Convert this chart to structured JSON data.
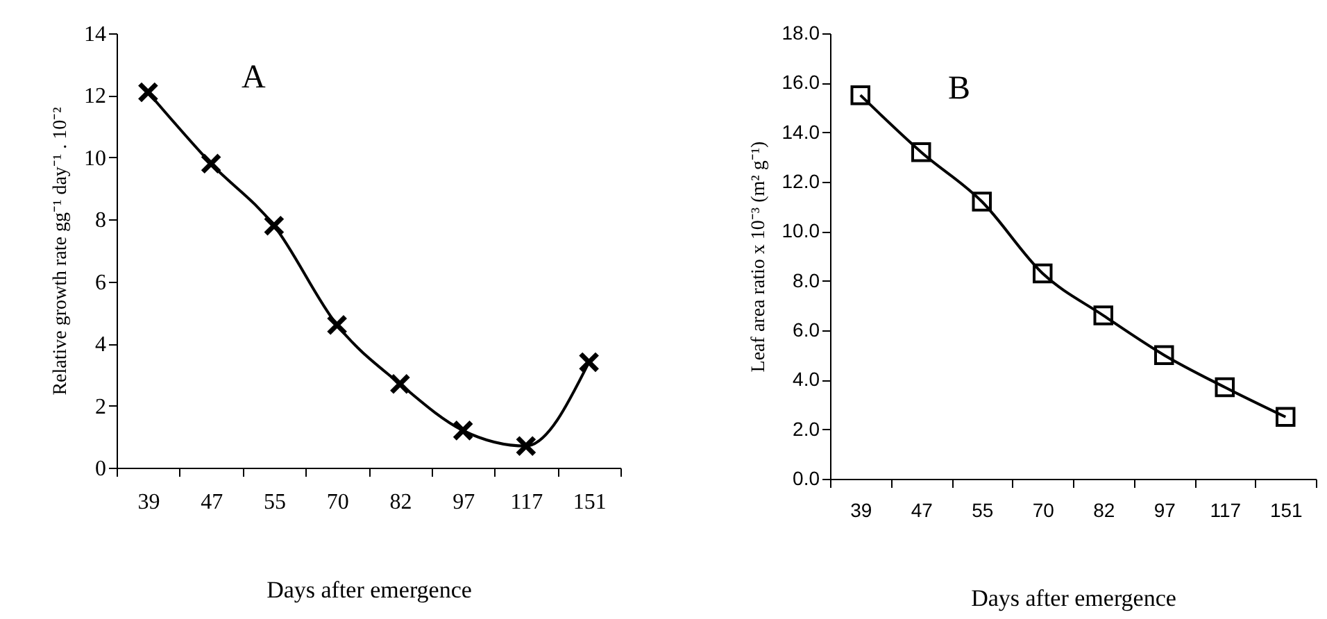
{
  "chart_data": [
    {
      "type": "line",
      "xlabel": "Days after emergence",
      "ylabel": "Relative growth rate gg⁻¹ day⁻¹ . 10⁻²",
      "annotations": [
        "A"
      ],
      "categories": [
        "39",
        "47",
        "55",
        "70",
        "82",
        "97",
        "117",
        "151"
      ],
      "series": [
        {
          "color": "#000000",
          "values": [
            12.1,
            9.8,
            7.8,
            4.6,
            2.7,
            1.2,
            0.7,
            3.4
          ]
        }
      ],
      "ylim": [
        0,
        14
      ],
      "yticks": [
        0,
        2,
        4,
        6,
        8,
        10,
        12,
        14
      ],
      "grid": false,
      "marker": "cross",
      "line_style": "solid"
    },
    {
      "type": "line",
      "xlabel": "Days after emergence",
      "ylabel": "Leaf area ratio x 10⁻³ (m² g⁻¹)",
      "annotations": [
        "B"
      ],
      "categories": [
        "39",
        "47",
        "55",
        "70",
        "82",
        "97",
        "117",
        "151"
      ],
      "series": [
        {
          "color": "#000000",
          "values": [
            15.5,
            13.2,
            11.2,
            8.3,
            6.6,
            5.0,
            3.7,
            2.5
          ]
        }
      ],
      "ylim": [
        0,
        18
      ],
      "yticks": [
        {
          "value": 0,
          "label": "0.0"
        },
        {
          "value": 2,
          "label": "2.0"
        },
        {
          "value": 4,
          "label": "4.0"
        },
        {
          "value": 6,
          "label": "6.0"
        },
        {
          "value": 8,
          "label": "8.0"
        },
        {
          "value": 10,
          "label": "10.0"
        },
        {
          "value": 12,
          "label": "12.0"
        },
        {
          "value": 14,
          "label": "14.0"
        },
        {
          "value": 16,
          "label": "16.0"
        },
        {
          "value": 18,
          "label": "18.0"
        }
      ],
      "grid": false,
      "marker": "square",
      "line_style": "solid"
    }
  ]
}
